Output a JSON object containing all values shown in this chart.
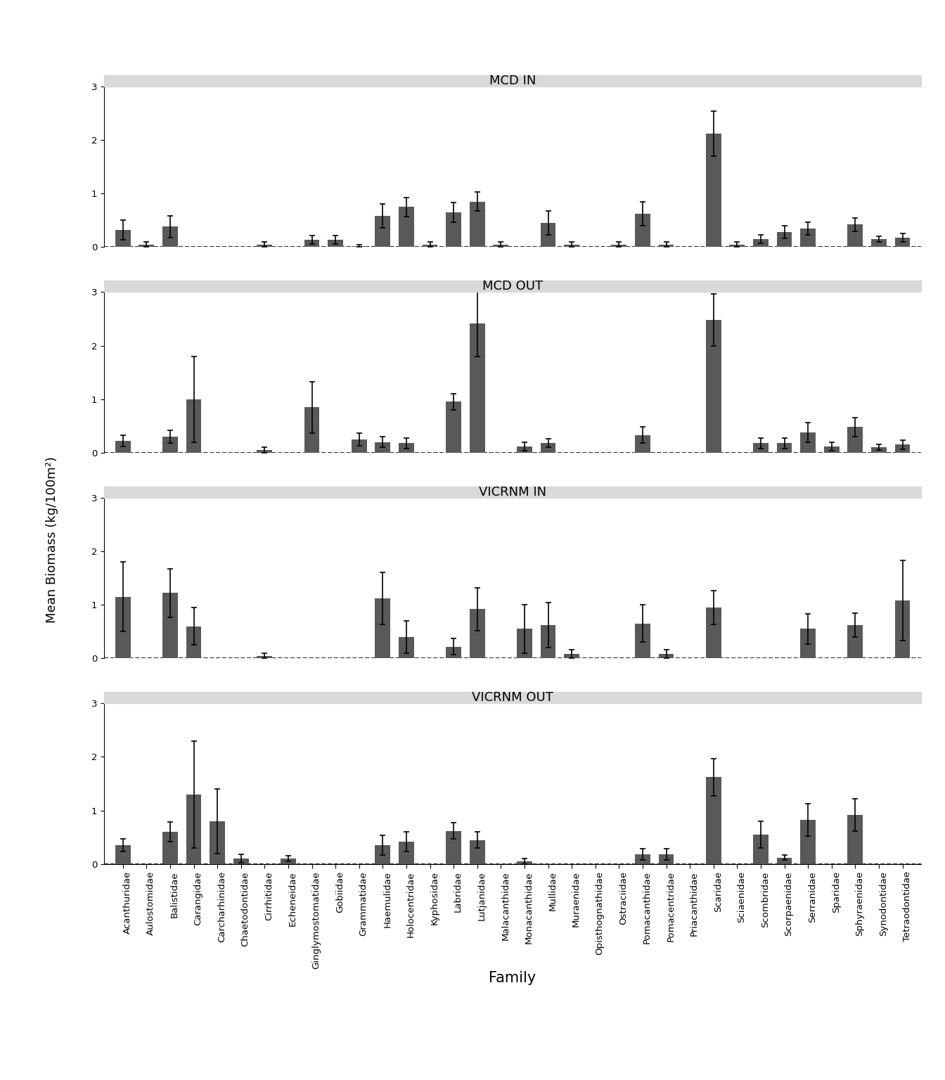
{
  "panels": [
    "MCD IN",
    "MCD OUT",
    "VICRNM IN",
    "VICRNM OUT"
  ],
  "families": [
    "Acanthuridae",
    "Aulostomidae",
    "Balistidae",
    "Carangidae",
    "Carcharhinidae",
    "Chaetodontidae",
    "Cirrhitidae",
    "Echeneidae",
    "Ginglymostomatidae",
    "Gobiidae",
    "Grammatidae",
    "Haemulidae",
    "Holocentridae",
    "Kyphosidae",
    "Labridae",
    "Lutjanidae",
    "Malacanthidae",
    "Monacanthidae",
    "Mullidae",
    "Muraenidae",
    "Opisthognathidae",
    "Ostraciidae",
    "Pomacanthidae",
    "Pomacentridae",
    "Priacanthidae",
    "Scaridae",
    "Sciaenidae",
    "Scombridae",
    "Scorpaenidae",
    "Serranidae",
    "Sparidae",
    "Sphyraenidae",
    "Synodontidae",
    "Tetraodontidae"
  ],
  "data": {
    "MCD IN": {
      "means": [
        0.32,
        0.05,
        0.38,
        0.0,
        0.0,
        0.0,
        0.05,
        0.0,
        0.14,
        0.14,
        0.02,
        0.58,
        0.75,
        0.05,
        0.65,
        0.85,
        0.05,
        0.0,
        0.45,
        0.05,
        0.0,
        0.05,
        0.62,
        0.05,
        0.0,
        2.12,
        0.05,
        0.15,
        0.28,
        0.35,
        0.0,
        0.42,
        0.15,
        0.18
      ],
      "errors": [
        0.18,
        0.05,
        0.2,
        0.0,
        0.0,
        0.0,
        0.05,
        0.0,
        0.08,
        0.08,
        0.02,
        0.22,
        0.18,
        0.05,
        0.18,
        0.18,
        0.05,
        0.0,
        0.22,
        0.05,
        0.0,
        0.05,
        0.22,
        0.05,
        0.0,
        0.42,
        0.05,
        0.08,
        0.12,
        0.12,
        0.0,
        0.12,
        0.05,
        0.08
      ]
    },
    "MCD OUT": {
      "means": [
        0.22,
        0.0,
        0.3,
        1.0,
        0.0,
        0.0,
        0.05,
        0.0,
        0.85,
        0.0,
        0.25,
        0.2,
        0.18,
        0.0,
        0.95,
        2.42,
        0.0,
        0.12,
        0.18,
        0.0,
        0.0,
        0.0,
        0.33,
        0.0,
        0.0,
        2.48,
        0.0,
        0.18,
        0.18,
        0.38,
        0.12,
        0.48,
        0.1,
        0.15
      ],
      "errors": [
        0.1,
        0.0,
        0.12,
        0.8,
        0.0,
        0.0,
        0.05,
        0.0,
        0.48,
        0.0,
        0.12,
        0.1,
        0.1,
        0.0,
        0.15,
        0.62,
        0.0,
        0.08,
        0.08,
        0.0,
        0.0,
        0.0,
        0.15,
        0.0,
        0.0,
        0.48,
        0.0,
        0.1,
        0.1,
        0.18,
        0.08,
        0.18,
        0.05,
        0.08
      ]
    },
    "VICRNM IN": {
      "means": [
        1.15,
        0.0,
        1.22,
        0.6,
        0.0,
        0.0,
        0.05,
        0.0,
        0.0,
        0.0,
        0.0,
        1.12,
        0.4,
        0.0,
        0.22,
        0.92,
        0.0,
        0.55,
        0.62,
        0.08,
        0.0,
        0.0,
        0.65,
        0.08,
        0.0,
        0.95,
        0.0,
        0.0,
        0.0,
        0.55,
        0.0,
        0.62,
        0.0,
        1.08
      ],
      "errors": [
        0.65,
        0.0,
        0.45,
        0.35,
        0.0,
        0.0,
        0.05,
        0.0,
        0.0,
        0.0,
        0.0,
        0.48,
        0.3,
        0.0,
        0.15,
        0.4,
        0.0,
        0.45,
        0.42,
        0.08,
        0.0,
        0.0,
        0.35,
        0.08,
        0.0,
        0.32,
        0.0,
        0.0,
        0.0,
        0.28,
        0.0,
        0.22,
        0.0,
        0.75
      ]
    },
    "VICRNM OUT": {
      "means": [
        0.35,
        0.0,
        0.6,
        1.3,
        0.8,
        0.1,
        0.0,
        0.1,
        0.0,
        0.0,
        0.0,
        0.35,
        0.42,
        0.0,
        0.62,
        0.45,
        0.0,
        0.05,
        0.0,
        0.0,
        0.0,
        0.0,
        0.18,
        0.18,
        0.0,
        1.62,
        0.0,
        0.55,
        0.12,
        0.82,
        0.0,
        0.92,
        0.0,
        0.0
      ],
      "errors": [
        0.12,
        0.0,
        0.18,
        1.0,
        0.6,
        0.08,
        0.0,
        0.05,
        0.0,
        0.0,
        0.0,
        0.18,
        0.18,
        0.0,
        0.15,
        0.15,
        0.0,
        0.05,
        0.0,
        0.0,
        0.0,
        0.0,
        0.1,
        0.1,
        0.0,
        0.35,
        0.0,
        0.25,
        0.05,
        0.3,
        0.0,
        0.3,
        0.0,
        0.0
      ]
    }
  },
  "bar_color": "#595959",
  "bar_width": 0.65,
  "ylim": [
    0,
    3.0
  ],
  "yticks": [
    0,
    1,
    2,
    3
  ],
  "background_color": "#ffffff",
  "panel_bg_color": "#d9d9d9",
  "title_fontsize": 13,
  "tick_fontsize": 9.5,
  "ylabel": "Mean Biomass (kg/100m²)",
  "xlabel": "Family",
  "ylabel_fontsize": 13,
  "xlabel_fontsize": 15
}
